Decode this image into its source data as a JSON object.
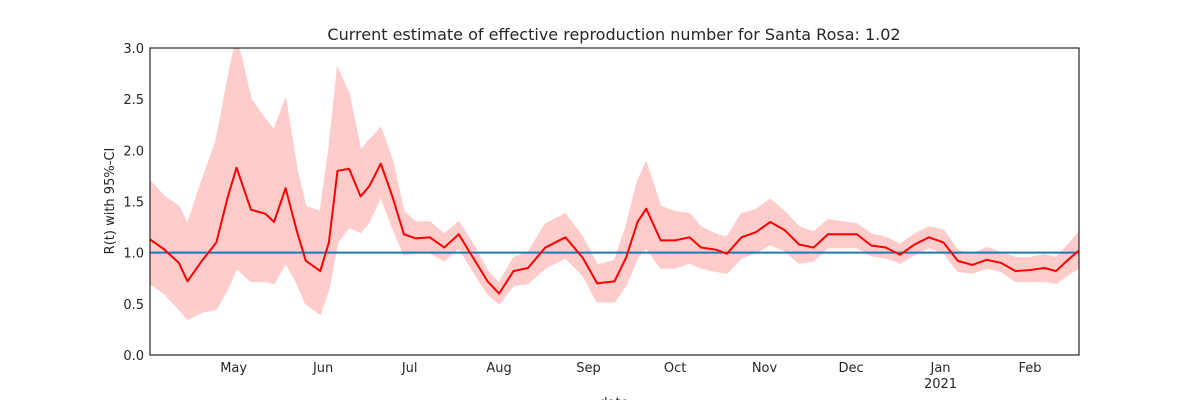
{
  "chart_data": {
    "type": "line",
    "title": "Current estimate of effective reproduction number for Santa Rosa: 1.02",
    "y_label": "R(t) with 95%-CI",
    "x_label": "date",
    "x": [
      1,
      6,
      11,
      14,
      19,
      24,
      28,
      31,
      36,
      41,
      44,
      48,
      52,
      55,
      60,
      63,
      66,
      70,
      74,
      77,
      81,
      85,
      89,
      93,
      98,
      103,
      108,
      113,
      118,
      122,
      127,
      132,
      138,
      145,
      151,
      156,
      162,
      166,
      170,
      173,
      178,
      183,
      188,
      192,
      197,
      201,
      206,
      211,
      216,
      221,
      226,
      231,
      236,
      241,
      246,
      251,
      256,
      261,
      266,
      271,
      276,
      281,
      286,
      291,
      296,
      301,
      306,
      311,
      315,
      320,
      323
    ],
    "series": [
      {
        "color": "#ff0000",
        "values": [
          1.13,
          1.03,
          0.9,
          0.72,
          0.92,
          1.1,
          1.55,
          1.83,
          1.42,
          1.38,
          1.3,
          1.63,
          1.2,
          0.92,
          0.82,
          1.1,
          1.8,
          1.82,
          1.55,
          1.65,
          1.87,
          1.55,
          1.18,
          1.14,
          1.15,
          1.05,
          1.18,
          0.95,
          0.72,
          0.6,
          0.82,
          0.85,
          1.05,
          1.15,
          0.95,
          0.7,
          0.72,
          0.95,
          1.3,
          1.43,
          1.12,
          1.12,
          1.15,
          1.05,
          1.03,
          0.99,
          1.15,
          1.2,
          1.3,
          1.22,
          1.08,
          1.05,
          1.18,
          1.18,
          1.18,
          1.07,
          1.05,
          0.98,
          1.08,
          1.15,
          1.1,
          0.92,
          0.88,
          0.93,
          0.9,
          0.82,
          0.83,
          0.85,
          0.82,
          0.95,
          1.02
        ]
      }
    ],
    "band": {
      "color": "#ffcccc",
      "upper": [
        1.7,
        1.55,
        1.45,
        1.28,
        1.7,
        2.1,
        2.7,
        3.1,
        2.5,
        2.3,
        2.2,
        2.5,
        1.8,
        1.45,
        1.4,
        2.0,
        2.8,
        2.55,
        2.0,
        2.1,
        2.22,
        1.9,
        1.4,
        1.3,
        1.3,
        1.18,
        1.3,
        1.08,
        0.82,
        0.7,
        0.95,
        1.0,
        1.28,
        1.38,
        1.15,
        0.88,
        0.92,
        1.25,
        1.7,
        1.88,
        1.45,
        1.4,
        1.38,
        1.25,
        1.18,
        1.15,
        1.38,
        1.42,
        1.52,
        1.4,
        1.25,
        1.2,
        1.32,
        1.3,
        1.28,
        1.18,
        1.15,
        1.08,
        1.18,
        1.25,
        1.22,
        1.02,
        0.98,
        1.05,
        1.0,
        0.95,
        0.95,
        0.98,
        0.95,
        1.1,
        1.2
      ],
      "lower": [
        0.7,
        0.6,
        0.45,
        0.35,
        0.42,
        0.45,
        0.65,
        0.85,
        0.72,
        0.72,
        0.7,
        0.9,
        0.7,
        0.5,
        0.4,
        0.65,
        1.1,
        1.25,
        1.2,
        1.3,
        1.55,
        1.25,
        0.98,
        1.0,
        1.0,
        0.92,
        1.05,
        0.82,
        0.6,
        0.5,
        0.68,
        0.7,
        0.85,
        0.95,
        0.78,
        0.52,
        0.52,
        0.68,
        0.95,
        1.05,
        0.85,
        0.85,
        0.9,
        0.85,
        0.82,
        0.8,
        0.95,
        1.0,
        1.08,
        1.02,
        0.9,
        0.92,
        1.05,
        1.05,
        1.05,
        0.97,
        0.95,
        0.9,
        0.98,
        1.05,
        1.0,
        0.82,
        0.8,
        0.85,
        0.82,
        0.72,
        0.72,
        0.72,
        0.7,
        0.8,
        0.85
      ]
    },
    "hline": {
      "value": 1,
      "color": "#1f77b4"
    },
    "xlim": [
      1,
      323
    ],
    "xticks": [
      {
        "value": 30,
        "label": "May"
      },
      {
        "value": 61,
        "label": "Jun"
      },
      {
        "value": 91,
        "label": "Jul"
      },
      {
        "value": 122,
        "label": "Aug"
      },
      {
        "value": 153,
        "label": "Sep"
      },
      {
        "value": 183,
        "label": "Oct"
      },
      {
        "value": 214,
        "label": "Nov"
      },
      {
        "value": 244,
        "label": "Dec"
      },
      {
        "value": 275,
        "label": "Jan",
        "sublabel": "2021"
      },
      {
        "value": 306,
        "label": "Feb"
      }
    ],
    "ylim": [
      0,
      3
    ],
    "yticks": [
      {
        "value": 0,
        "label": "0.0"
      },
      0.5,
      {
        "value": 1,
        "label": "1.0"
      },
      1.5,
      {
        "value": 2,
        "label": "2.0"
      },
      2.5,
      {
        "value": 3,
        "label": "3.0"
      }
    ],
    "grid": false
  }
}
